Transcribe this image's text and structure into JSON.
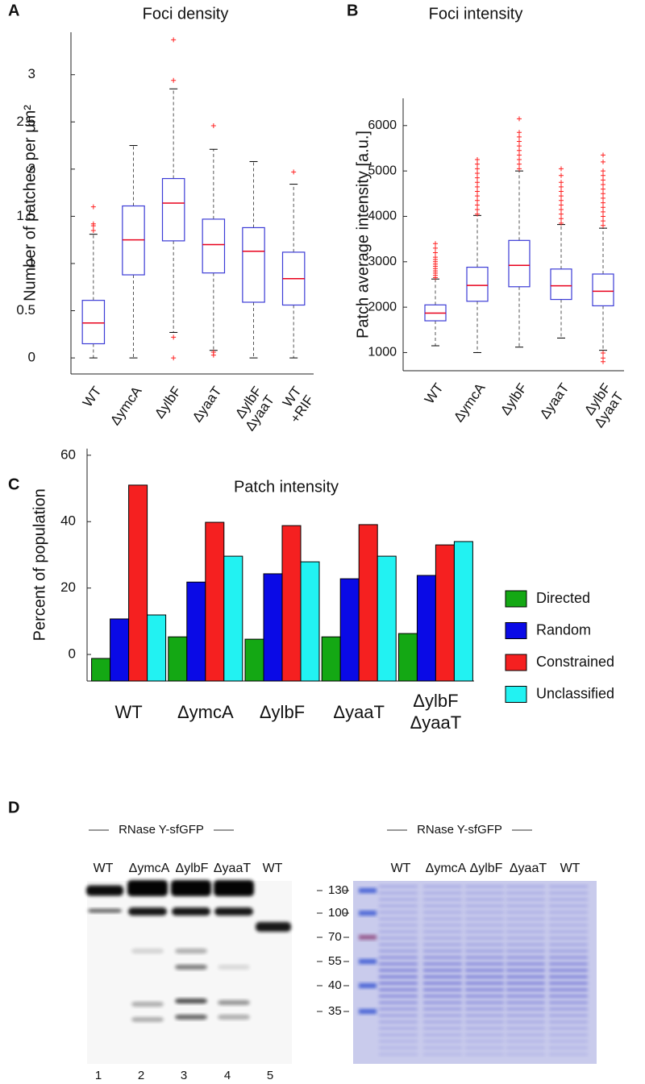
{
  "panel_labels": [
    "A",
    "B",
    "C",
    "D"
  ],
  "chart_data": [
    {
      "type": "box",
      "title": "Foci density",
      "y_label": "Number of patches per μm²",
      "categories": [
        "WT",
        "ΔymcA",
        "ΔylbF",
        "ΔyaaT",
        "ΔylbF\nΔyaaT",
        "WT\n+RIF"
      ],
      "box_color": "#3b3bd6",
      "median_color": "#e8001c",
      "flier_color": "#ff2020",
      "whisker_color": "#555555",
      "ylim": [
        -0.17,
        3.45
      ],
      "yticks": [
        0,
        0.5,
        1,
        1.5,
        2,
        2.5,
        3
      ],
      "boxes": [
        {
          "whislo": 0,
          "q1": 0.15,
          "med": 0.37,
          "q3": 0.61,
          "whishi": 1.31,
          "fliers": [
            1.35,
            1.4,
            1.42,
            1.6
          ]
        },
        {
          "whislo": 0,
          "q1": 0.88,
          "med": 1.25,
          "q3": 1.61,
          "whishi": 2.25,
          "fliers": []
        },
        {
          "whislo": 0.27,
          "q1": 1.24,
          "med": 1.64,
          "q3": 1.9,
          "whishi": 2.85,
          "fliers": [
            0.22,
            0,
            2.94,
            3.37
          ]
        },
        {
          "whislo": 0.08,
          "q1": 0.9,
          "med": 1.2,
          "q3": 1.47,
          "whishi": 2.21,
          "fliers": [
            0.06,
            0.03,
            2.46
          ]
        },
        {
          "whislo": 0,
          "q1": 0.59,
          "med": 1.13,
          "q3": 1.38,
          "whishi": 2.08,
          "fliers": []
        },
        {
          "whislo": 0,
          "q1": 0.56,
          "med": 0.84,
          "q3": 1.12,
          "whishi": 1.84,
          "fliers": [
            1.97
          ]
        }
      ]
    },
    {
      "type": "box",
      "title": "Foci intensity",
      "y_label": "Patch average intensity [a.u.]",
      "categories": [
        "WT",
        "ΔymcA",
        "ΔylbF",
        "ΔyaaT",
        "ΔylbF\nΔyaaT"
      ],
      "box_color": "#3b3bd6",
      "median_color": "#e8001c",
      "flier_color": "#ff2020",
      "whisker_color": "#555555",
      "ylim": [
        600,
        6600
      ],
      "yticks": [
        1000,
        2000,
        3000,
        4000,
        5000,
        6000
      ],
      "boxes": [
        {
          "whislo": 1150,
          "q1": 1700,
          "med": 1870,
          "q3": 2050,
          "whishi": 2620,
          "fliers": [
            2650,
            2700,
            2750,
            2800,
            2850,
            2900,
            2950,
            3000,
            3050,
            3100,
            3200,
            3300,
            3400
          ]
        },
        {
          "whislo": 1000,
          "q1": 2130,
          "med": 2480,
          "q3": 2880,
          "whishi": 4020,
          "fliers": [
            4050,
            4150,
            4250,
            4350,
            4450,
            4550,
            4650,
            4750,
            4850,
            4950,
            5050,
            5150,
            5250
          ]
        },
        {
          "whislo": 1120,
          "q1": 2450,
          "med": 2920,
          "q3": 3470,
          "whishi": 5000,
          "fliers": [
            5050,
            5150,
            5250,
            5350,
            5450,
            5550,
            5650,
            5750,
            5850,
            6150
          ]
        },
        {
          "whislo": 1320,
          "q1": 2170,
          "med": 2470,
          "q3": 2840,
          "whishi": 3820,
          "fliers": [
            3850,
            3950,
            4050,
            4150,
            4250,
            4350,
            4450,
            4550,
            4650,
            4750,
            4900,
            5050
          ]
        },
        {
          "whislo": 1050,
          "q1": 2030,
          "med": 2350,
          "q3": 2730,
          "whishi": 3740,
          "fliers": [
            3800,
            3900,
            4000,
            4100,
            4200,
            4300,
            4400,
            4500,
            4600,
            4700,
            4800,
            4900,
            5000,
            5200,
            5350,
            990,
            880,
            800
          ]
        }
      ]
    },
    {
      "type": "bar",
      "title": "Patch intensity",
      "y_label": "Percent of population",
      "categories": [
        "WT",
        "ΔymcA",
        "ΔylbF",
        "ΔyaaT",
        "ΔylbF\nΔyaaT"
      ],
      "series": [
        {
          "name": "Directed",
          "color": "#14a814",
          "values": [
            -1.2,
            5.3,
            4.6,
            5.3,
            6.3
          ]
        },
        {
          "name": "Random",
          "color": "#0a0ae6",
          "values": [
            10.7,
            21.8,
            24.3,
            22.8,
            23.8
          ]
        },
        {
          "name": "Constrained",
          "color": "#f52020",
          "values": [
            51,
            39.8,
            38.8,
            39.1,
            33
          ]
        },
        {
          "name": "Unclassified",
          "color": "#22f2f2",
          "values": [
            11.9,
            29.6,
            27.9,
            29.6,
            34
          ]
        }
      ],
      "ylim": [
        -8,
        62
      ],
      "yticks": [
        0,
        20,
        40,
        60
      ],
      "legend": "right"
    }
  ],
  "panel_d": {
    "left_header": "RNase Y-sfGFP",
    "right_header": "RNase Y-sfGFP",
    "left_lanes": [
      "WT",
      "ΔymcA",
      "ΔylbF",
      "ΔyaaT",
      "WT"
    ],
    "right_lanes": [
      "WT",
      "ΔymcA",
      "ΔylbF",
      "ΔyaaT",
      "WT"
    ],
    "markers": [
      "130",
      "100",
      "70",
      "55",
      "40",
      "35"
    ],
    "lane_numbers": [
      "1",
      "2",
      "3",
      "4",
      "5"
    ]
  }
}
